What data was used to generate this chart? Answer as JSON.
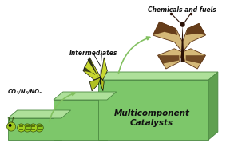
{
  "background_color": "#ffffff",
  "figsize": [
    2.93,
    1.89
  ],
  "dpi": 100,
  "stair_front_color": "#7dc76a",
  "stair_top_color": "#aee09a",
  "stair_side_color": "#5fa050",
  "stair_edge_color": "#4a8840",
  "label_co2": "CO₂/N₂/NOₓ",
  "label_inter": "Intermediates",
  "label_chem": "Chemicals and fuels",
  "label_multi": "Multicomponent\nCatalysts",
  "arrow_color": "#82c060",
  "text_color": "#111111"
}
